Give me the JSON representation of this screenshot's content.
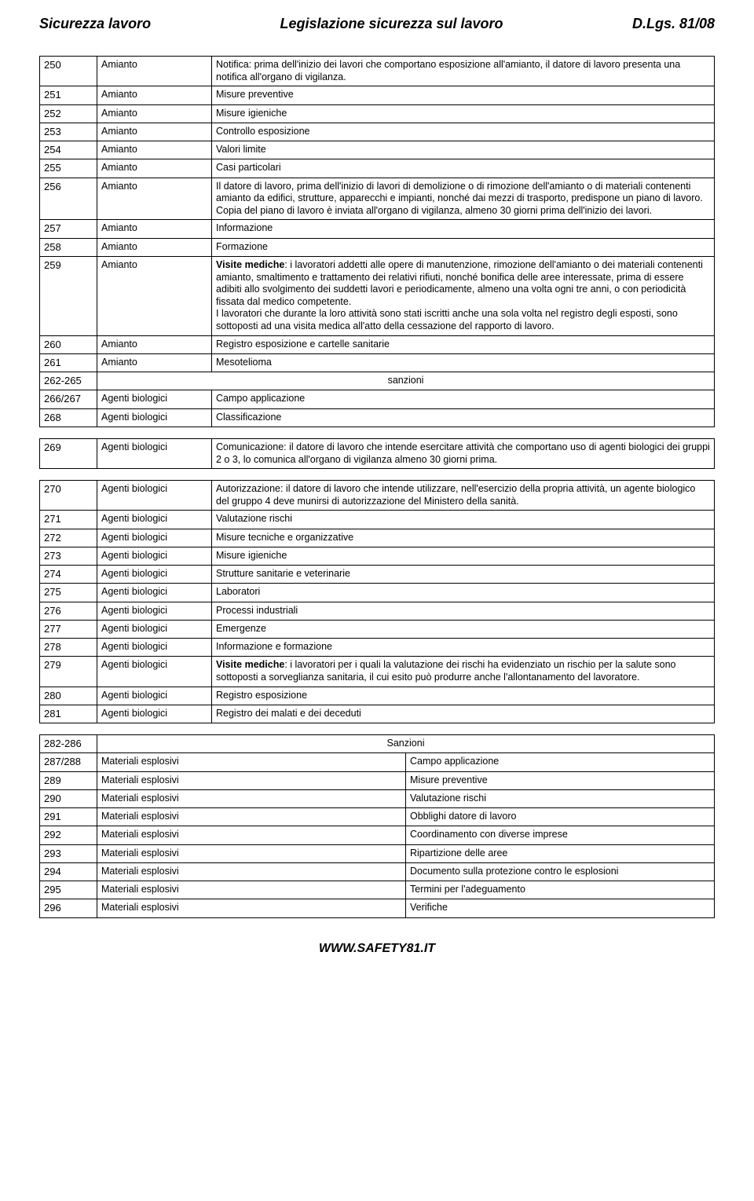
{
  "header": {
    "left": "Sicurezza lavoro",
    "center": "Legislazione sicurezza sul lavoro",
    "right": "D.Lgs. 81/08"
  },
  "footer": "WWW.SAFETY81.IT",
  "table1": [
    {
      "art": "250",
      "cat": "Amianto",
      "desc": "Notifica: prima dell'inizio dei lavori che comportano esposizione all'amianto, il datore di lavoro presenta una notifica all'organo di vigilanza."
    },
    {
      "art": "251",
      "cat": "Amianto",
      "desc": "Misure preventive"
    },
    {
      "art": "252",
      "cat": "Amianto",
      "desc": "Misure igieniche"
    },
    {
      "art": "253",
      "cat": "Amianto",
      "desc": "Controllo esposizione"
    },
    {
      "art": "254",
      "cat": "Amianto",
      "desc": "Valori limite"
    },
    {
      "art": "255",
      "cat": "Amianto",
      "desc": "Casi particolari"
    },
    {
      "art": "256",
      "cat": "Amianto",
      "desc": "Il datore di lavoro, prima dell'inizio di lavori di demolizione o di rimozione dell'amianto o di materiali contenenti amianto da edifici, strutture, apparecchi e impianti, nonché dai mezzi di trasporto, predispone un piano di lavoro. Copia del piano di lavoro è inviata all'organo di vigilanza, almeno 30 giorni prima dell'inizio dei lavori."
    },
    {
      "art": "257",
      "cat": "Amianto",
      "desc": "Informazione"
    },
    {
      "art": "258",
      "cat": "Amianto",
      "desc": "Formazione"
    },
    {
      "art": "259",
      "cat": "Amianto",
      "bold": "Visite mediche",
      "desc": ": i lavoratori addetti alle opere di manutenzione, rimozione dell'amianto o dei materiali contenenti amianto, smaltimento e trattamento dei relativi rifiuti, nonché bonifica delle aree interessate, prima di essere adibiti allo svolgimento dei suddetti lavori e periodicamente, almeno una volta ogni tre anni, o con periodicità fissata dal medico competente.\nI lavoratori che durante la loro attività sono stati iscritti anche una sola volta nel registro degli esposti, sono sottoposti ad una visita medica all'atto della cessazione del rapporto di lavoro."
    },
    {
      "art": "260",
      "cat": "Amianto",
      "desc": "Registro esposizione e cartelle sanitarie"
    },
    {
      "art": "261",
      "cat": "Amianto",
      "desc": "Mesotelioma"
    },
    {
      "art": "262-265",
      "span": true,
      "desc": "sanzioni"
    },
    {
      "art": "266/267",
      "cat": "Agenti biologici",
      "desc": "Campo applicazione"
    },
    {
      "art": "268",
      "cat": "Agenti biologici",
      "desc": "Classificazione"
    }
  ],
  "table2": [
    {
      "art": "269",
      "cat": "Agenti biologici",
      "desc": "Comunicazione: il datore di lavoro che intende esercitare attività che comportano uso di agenti biologici dei gruppi 2 o 3, lo comunica all'organo di vigilanza almeno 30 giorni prima."
    }
  ],
  "table3": [
    {
      "art": "270",
      "cat": "Agenti biologici",
      "desc": "Autorizzazione: il datore di lavoro che intende utilizzare, nell'esercizio della propria attività, un agente biologico del gruppo 4 deve munirsi di autorizzazione del Ministero della sanità."
    },
    {
      "art": "271",
      "cat": "Agenti biologici",
      "desc": "Valutazione rischi"
    },
    {
      "art": "272",
      "cat": "Agenti biologici",
      "desc": "Misure tecniche e organizzative"
    },
    {
      "art": "273",
      "cat": "Agenti biologici",
      "desc": "Misure igieniche"
    },
    {
      "art": "274",
      "cat": "Agenti biologici",
      "desc": "Strutture sanitarie e veterinarie"
    },
    {
      "art": "275",
      "cat": "Agenti biologici",
      "desc": "Laboratori"
    },
    {
      "art": "276",
      "cat": "Agenti biologici",
      "desc": "Processi industriali"
    },
    {
      "art": "277",
      "cat": "Agenti biologici",
      "desc": "Emergenze"
    },
    {
      "art": "278",
      "cat": "Agenti biologici",
      "desc": "Informazione e formazione"
    },
    {
      "art": "279",
      "cat": "Agenti biologici",
      "bold": "Visite mediche",
      "desc": ": i lavoratori per i quali la valutazione dei rischi ha evidenziato un rischio per la salute sono sottoposti a sorveglianza sanitaria, il cui esito può produrre anche l'allontanamento del lavoratore."
    },
    {
      "art": "280",
      "cat": "Agenti biologici",
      "desc": "Registro esposizione"
    },
    {
      "art": "281",
      "cat": "Agenti biologici",
      "desc": "Registro dei malati e dei deceduti"
    }
  ],
  "table4": [
    {
      "art": "282-286",
      "span": true,
      "desc": "Sanzioni"
    },
    {
      "art": "287/288",
      "cat": "Materiali esplosivi",
      "desc": "Campo applicazione"
    },
    {
      "art": "289",
      "cat": "Materiali esplosivi",
      "desc": "Misure preventive"
    },
    {
      "art": "290",
      "cat": "Materiali esplosivi",
      "desc": "Valutazione rischi"
    },
    {
      "art": "291",
      "cat": "Materiali esplosivi",
      "desc": "Obblighi datore di lavoro"
    },
    {
      "art": "292",
      "cat": "Materiali esplosivi",
      "desc": "Coordinamento con diverse imprese"
    },
    {
      "art": "293",
      "cat": "Materiali esplosivi",
      "desc": "Ripartizione delle aree"
    },
    {
      "art": "294",
      "cat": "Materiali esplosivi",
      "desc": "Documento sulla protezione contro le esplosioni"
    },
    {
      "art": "295",
      "cat": "Materiali esplosivi",
      "desc": "Termini per l'adeguamento"
    },
    {
      "art": "296",
      "cat": "Materiali esplosivi",
      "desc": "Verifiche"
    }
  ]
}
